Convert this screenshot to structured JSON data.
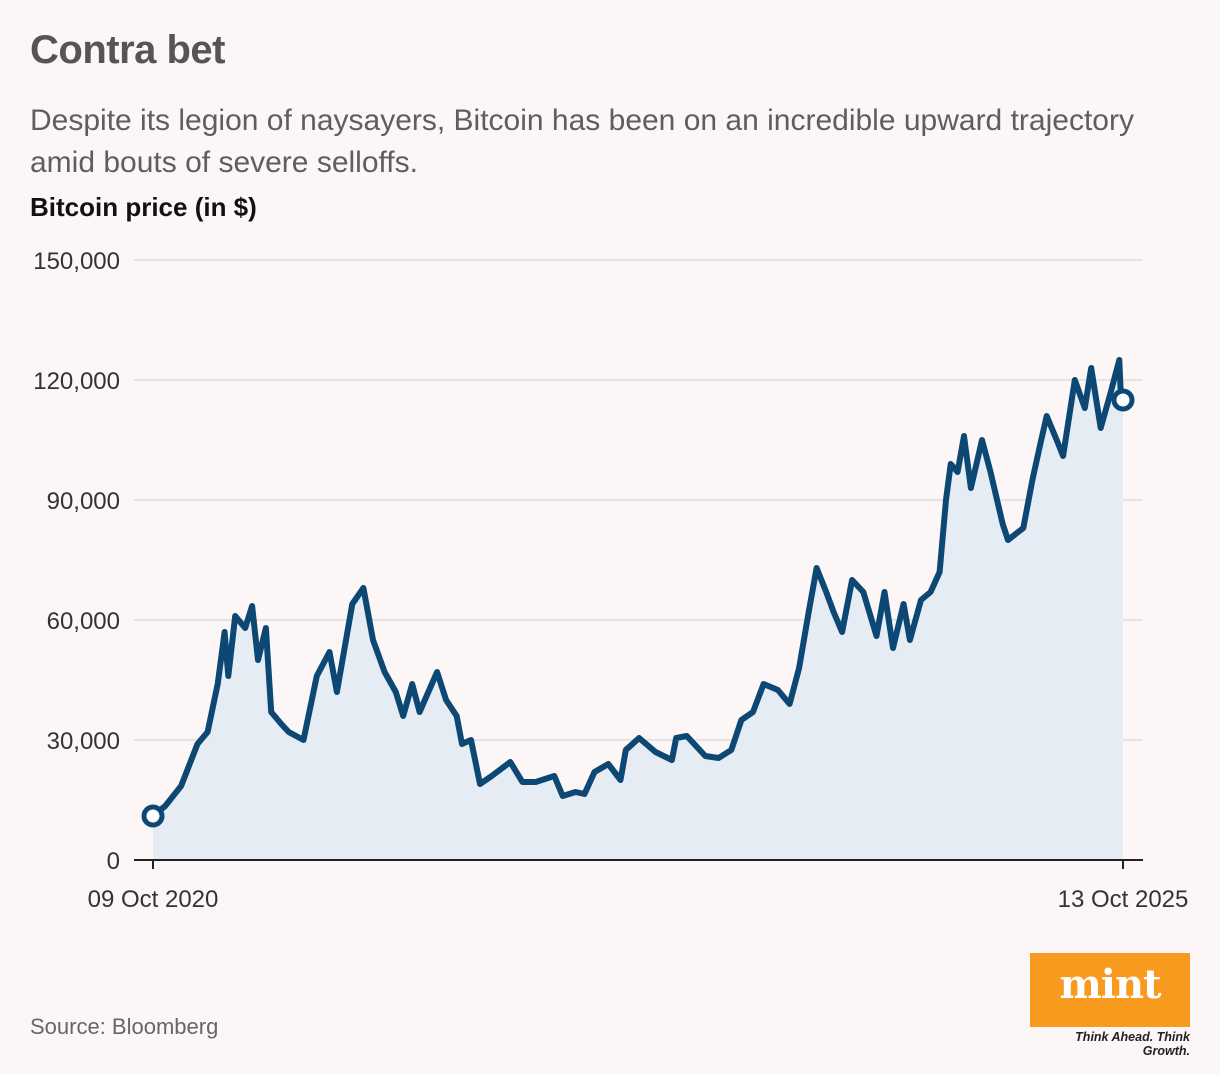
{
  "title": "Contra bet",
  "subtitle": "Despite its legion of naysayers, Bitcoin has been on an incredible upward trajectory amid bouts of severe selloffs.",
  "source": "Source: Bloomberg",
  "logo": {
    "word": "mint",
    "tagline": "Think Ahead. Think Growth."
  },
  "colors": {
    "line": "#0d4874",
    "fill": "#e6ecf4",
    "background": "#fcf6f6",
    "grid": "#dcdcdc",
    "logo": "#f79a1e"
  },
  "chart_data": {
    "type": "area",
    "ylabel": "Bitcoin price (in $)",
    "ylim": [
      0,
      150000
    ],
    "yticks": [
      0,
      30000,
      60000,
      90000,
      120000,
      150000
    ],
    "ytick_labels": [
      "0",
      "30,000",
      "60,000",
      "90,000",
      "120,000",
      "150,000"
    ],
    "xlim": [
      "2020-10-09",
      "2025-10-13"
    ],
    "xtick_labels": [
      "09 Oct 2020",
      "13 Oct 2025"
    ],
    "grid": true,
    "series": [
      {
        "x": [
          "2020-10-09",
          "2020-11-01",
          "2020-12-01",
          "2021-01-01",
          "2021-01-20",
          "2021-02-08",
          "2021-02-21",
          "2021-02-28",
          "2021-03-13",
          "2021-04-01",
          "2021-04-14",
          "2021-04-25",
          "2021-05-10",
          "2021-05-20",
          "2021-06-08",
          "2021-06-22",
          "2021-07-20",
          "2021-08-14",
          "2021-09-07",
          "2021-09-21",
          "2021-10-20",
          "2021-11-10",
          "2021-11-28",
          "2021-12-20",
          "2022-01-10",
          "2022-01-24",
          "2022-02-10",
          "2022-02-24",
          "2022-03-29",
          "2022-04-15",
          "2022-05-05",
          "2022-05-15",
          "2022-06-01",
          "2022-06-18",
          "2022-07-10",
          "2022-08-14",
          "2022-09-06",
          "2022-10-01",
          "2022-11-05",
          "2022-11-21",
          "2022-12-15",
          "2023-01-01",
          "2023-01-20",
          "2023-02-15",
          "2023-03-10",
          "2023-03-20",
          "2023-04-14",
          "2023-05-15",
          "2023-06-15",
          "2023-06-23",
          "2023-07-13",
          "2023-08-17",
          "2023-09-11",
          "2023-10-05",
          "2023-10-24",
          "2023-11-15",
          "2023-12-05",
          "2024-01-01",
          "2024-01-23",
          "2024-02-10",
          "2024-02-28",
          "2024-03-14",
          "2024-04-01",
          "2024-04-15",
          "2024-05-01",
          "2024-05-20",
          "2024-06-10",
          "2024-07-05",
          "2024-07-20",
          "2024-08-05",
          "2024-08-25",
          "2024-09-06",
          "2024-09-27",
          "2024-10-15",
          "2024-11-01",
          "2024-11-13",
          "2024-11-22",
          "2024-12-05",
          "2024-12-17",
          "2024-12-30",
          "2025-01-20",
          "2025-02-05",
          "2025-02-28",
          "2025-03-10",
          "2025-04-08",
          "2025-04-25",
          "2025-05-10",
          "2025-05-22",
          "2025-06-10",
          "2025-06-22",
          "2025-07-14",
          "2025-08-02",
          "2025-08-14",
          "2025-09-01",
          "2025-09-20",
          "2025-10-06",
          "2025-10-10",
          "2025-10-13"
        ],
        "values": [
          11000,
          13500,
          18500,
          29000,
          32000,
          44000,
          57000,
          46000,
          61000,
          58000,
          63500,
          50000,
          58000,
          37000,
          34000,
          32000,
          30000,
          46000,
          52000,
          42000,
          64000,
          68000,
          55000,
          47000,
          42000,
          36000,
          44000,
          37000,
          47000,
          40000,
          36000,
          29000,
          30000,
          19000,
          21000,
          24500,
          19500,
          19500,
          21000,
          16000,
          17000,
          16500,
          22000,
          24000,
          20000,
          27500,
          30500,
          27000,
          25000,
          30500,
          31000,
          26000,
          25500,
          27500,
          35000,
          37000,
          44000,
          42500,
          39000,
          48000,
          62000,
          73000,
          67000,
          62000,
          57000,
          70000,
          67000,
          56000,
          67000,
          53000,
          64000,
          55000,
          65000,
          67000,
          72000,
          90000,
          99000,
          97000,
          106000,
          93000,
          105000,
          97000,
          84000,
          80000,
          83000,
          95000,
          104000,
          111000,
          105000,
          101000,
          120000,
          113000,
          123000,
          108000,
          117000,
          125000,
          113000,
          115000
        ]
      }
    ]
  }
}
